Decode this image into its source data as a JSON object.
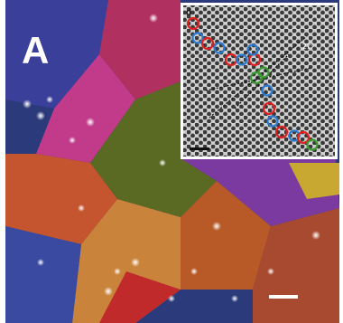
{
  "panel_label": "A",
  "inset": {
    "label": "d",
    "angle_label": "27°"
  }
}
